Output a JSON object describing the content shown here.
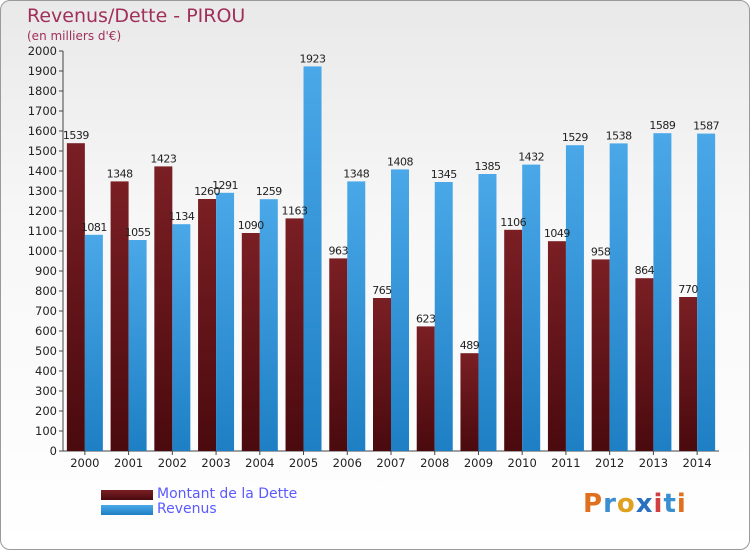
{
  "title": "Revenus/Dette - PIROU",
  "subtitle": "(en milliers d'€)",
  "legend": {
    "debt_label": "Montant de la Dette",
    "revenue_label": "Revenus"
  },
  "logo": {
    "text": "Proxiti"
  },
  "colors": {
    "debt": "#7a1f24",
    "debt_dark": "#4a0a0e",
    "revenue": "#4aa8e8",
    "revenue_dark": "#1e7fc4",
    "title": "#a0305a",
    "legend_text": "#5a5aff"
  },
  "chart_data": {
    "type": "bar",
    "categories": [
      "2000",
      "2001",
      "2002",
      "2003",
      "2004",
      "2005",
      "2006",
      "2007",
      "2008",
      "2009",
      "2010",
      "2011",
      "2012",
      "2013",
      "2014"
    ],
    "series": [
      {
        "name": "Montant de la Dette",
        "values": [
          1539,
          1348,
          1423,
          1260,
          1090,
          1163,
          963,
          765,
          623,
          489,
          1106,
          1049,
          958,
          864,
          770
        ]
      },
      {
        "name": "Revenus",
        "values": [
          1081,
          1055,
          1134,
          1291,
          1259,
          1923,
          1348,
          1408,
          1345,
          1385,
          1432,
          1529,
          1538,
          1589,
          1587
        ]
      }
    ],
    "y_ticks": [
      0,
      100,
      200,
      300,
      400,
      500,
      600,
      700,
      800,
      900,
      1000,
      1100,
      1200,
      1300,
      1400,
      1500,
      1600,
      1700,
      1800,
      1900,
      2000
    ],
    "ylim": [
      0,
      2000
    ],
    "grid": false,
    "legend_position": "bottom-left"
  }
}
